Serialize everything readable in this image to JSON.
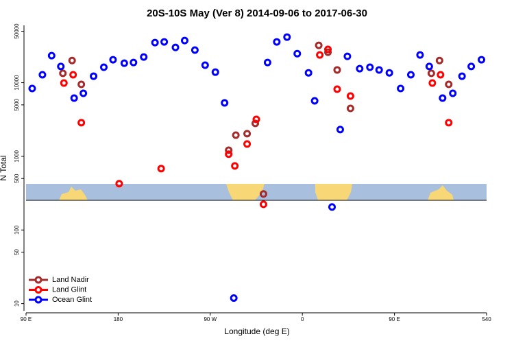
{
  "chart_data": {
    "type": "scatter",
    "title": "20S-10S May (Ver 8)   2014-09-06 to 2017-06-30",
    "x_label": "Longitude (deg E)",
    "y_label": "N Total",
    "log_y": true,
    "legend": "lower left",
    "xlim": [
      90,
      540
    ],
    "xticks": [
      {
        "value": 90,
        "label": "90 E"
      },
      180,
      {
        "value": 270,
        "label": "90 W"
      },
      {
        "value": 360,
        "label": "0"
      },
      {
        "value": 450,
        "label": "90 E"
      },
      540
    ],
    "ylim": [
      8,
      60000
    ],
    "yticks": [
      10,
      50,
      100,
      500,
      1000,
      5000,
      10000,
      50000
    ],
    "series": [
      {
        "name": "Land Nadir",
        "color": "#a52a2a",
        "x": [
          126,
          135,
          144,
          288,
          295,
          306,
          314,
          322,
          376,
          385,
          394,
          407,
          486,
          494,
          503
        ],
        "values": [
          13400,
          20000,
          9480,
          1210,
          1940,
          2030,
          2800,
          308,
          32100,
          25900,
          14900,
          4480,
          13400,
          20000,
          9480
        ]
      },
      {
        "name": "Land Glint",
        "color": "#ff0000",
        "x": [
          127,
          136,
          144,
          181,
          222,
          288,
          294,
          306,
          315,
          322,
          377,
          385,
          394,
          407,
          487,
          495,
          503
        ],
        "values": [
          9890,
          12800,
          2860,
          425,
          681,
          1070,
          741,
          1470,
          3180,
          223,
          23800,
          28300,
          8170,
          6590,
          9890,
          12800,
          2860
        ]
      },
      {
        "name": "Ocean Glint",
        "color": "#0000ff",
        "x": [
          96,
          106,
          115,
          124,
          137,
          146,
          156,
          166,
          175,
          186,
          195,
          205,
          216,
          225,
          236,
          245,
          255,
          265,
          275,
          284,
          293,
          326,
          335,
          345,
          355,
          366,
          372,
          389,
          397,
          404,
          416,
          426,
          435,
          445,
          456,
          466,
          475,
          484,
          497,
          507,
          516,
          525,
          535
        ],
        "values": [
          8340,
          12800,
          23300,
          16600,
          6180,
          7180,
          12250,
          16200,
          20500,
          18400,
          18800,
          22300,
          35000,
          35800,
          30100,
          37300,
          27700,
          17300,
          13900,
          5320,
          11.9,
          18800,
          35800,
          41600,
          24800,
          13600,
          5670,
          205,
          2310,
          22800,
          15500,
          16200,
          14900,
          13600,
          8340,
          12800,
          23800,
          16600,
          6180,
          7180,
          12250,
          16600,
          20500
        ]
      }
    ]
  }
}
